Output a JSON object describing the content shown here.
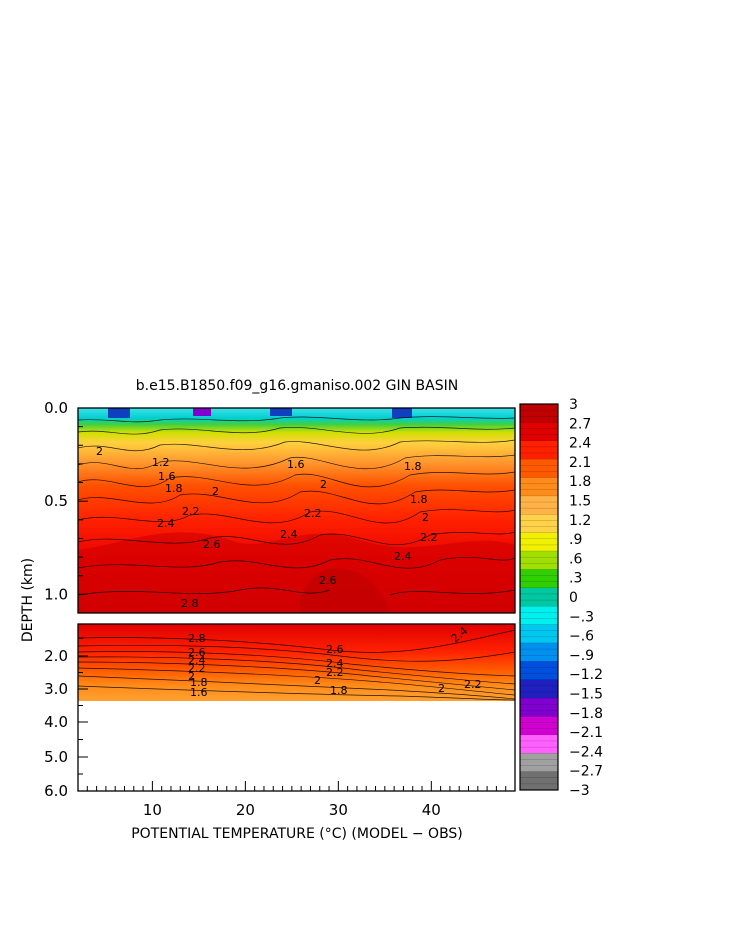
{
  "chart_data": {
    "type": "heatmap",
    "title": "b.e15.B1850.f09_g16.gmaniso.002 GIN BASIN",
    "xlabel": "POTENTIAL TEMPERATURE (°C) (MODEL − OBS)",
    "ylabel": "DEPTH (km)",
    "x_ticks": [
      "10",
      "20",
      "30",
      "40"
    ],
    "x_tick_values": [
      10,
      20,
      30,
      40
    ],
    "xlim": [
      2,
      49
    ],
    "upper_panel": {
      "ylim": [
        0.0,
        1.1
      ],
      "y_ticks": [
        "0.0",
        "0.5",
        "1.0"
      ],
      "y_tick_values": [
        0.0,
        0.5,
        1.0
      ],
      "contour_labels": [
        "2",
        "1.2",
        "1.6",
        "1.8",
        "2",
        "2.2",
        "2.4",
        "2.6",
        "2.8",
        "2.2",
        "2.4",
        "2.6",
        "1.8",
        "2",
        "2.2",
        "2.4",
        "1.6",
        "1.8",
        "2"
      ]
    },
    "lower_panel": {
      "ylim": [
        1.1,
        6.0
      ],
      "y_ticks": [
        "2.0",
        "3.0",
        "4.0",
        "5.0",
        "6.0"
      ],
      "y_tick_values": [
        2.0,
        3.0,
        4.0,
        5.0,
        6.0
      ],
      "data_bottom_depth": 3.3,
      "contour_labels": [
        "2.8",
        "2.6",
        "2.4",
        "2.2",
        "2",
        "1.8",
        "1.6",
        "2.6",
        "2.4",
        "2.2",
        "2",
        "1.8",
        "2.4",
        "2.2",
        "2"
      ]
    },
    "colorbar": {
      "levels": [
        "3",
        "2.7",
        "2.4",
        "2.1",
        "1.8",
        "1.5",
        "1.2",
        ".9",
        ".6",
        ".3",
        "0",
        "−.3",
        "−.6",
        "−.9",
        "−1.2",
        "−1.5",
        "−1.8",
        "−2.1",
        "−2.4",
        "−2.7",
        "−3"
      ],
      "level_values": [
        3,
        2.7,
        2.4,
        2.1,
        1.8,
        1.5,
        1.2,
        0.9,
        0.6,
        0.3,
        0,
        -0.3,
        -0.6,
        -0.9,
        -1.2,
        -1.5,
        -1.8,
        -2.1,
        -2.4,
        -2.7,
        -3
      ],
      "colors": [
        "#c00000",
        "#e00000",
        "#ff2000",
        "#ff5a00",
        "#ff8c1a",
        "#ffb347",
        "#ffd24a",
        "#f0f000",
        "#a0e000",
        "#30d000",
        "#00c8a0",
        "#00f0f0",
        "#00c8f0",
        "#0090f0",
        "#0050e0",
        "#2020c0",
        "#8000d0",
        "#d000d0",
        "#ff60ff",
        "#a0a0a0",
        "#707070"
      ]
    }
  }
}
